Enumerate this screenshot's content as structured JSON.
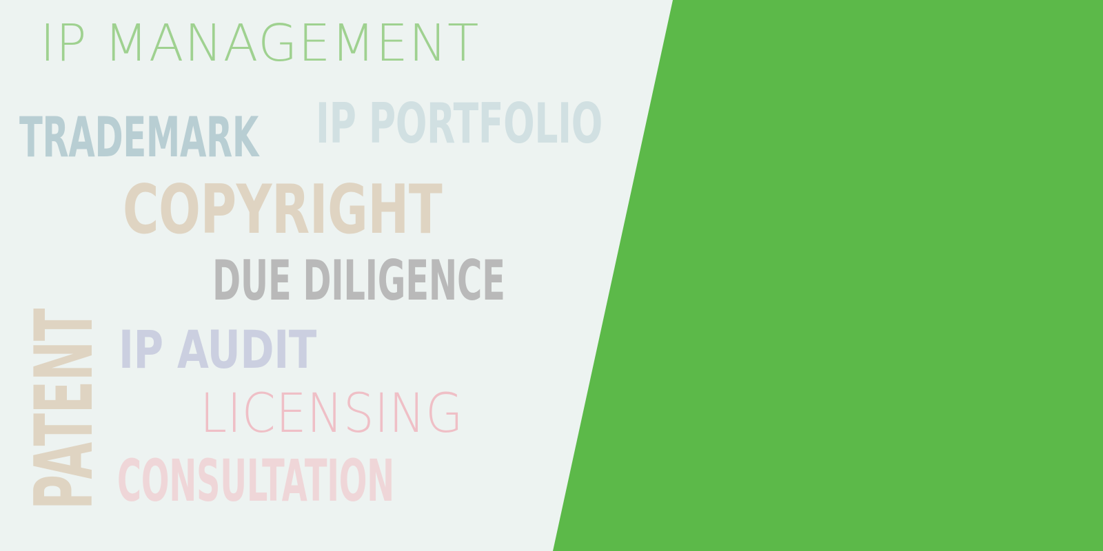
{
  "words": {
    "ip_management": "IP MANAGEMENT",
    "trademark": "TRADEMARK",
    "ip_portfolio": "IP PORTFOLIO",
    "copyright": "COPYRIGHT",
    "due_diligence": "DUE DILIGENCE",
    "ip_audit": "IP AUDIT",
    "licensing": "LICENSING",
    "consultation": "CONSULTATION",
    "patent": "PATENT"
  },
  "colors": {
    "background": "#edf3f1",
    "green_panel": "#5cb949",
    "ip_management": "#9fd190",
    "trademark": "#b8ced3",
    "ip_portfolio": "#d1e0e2",
    "copyright": "#dfd4c2",
    "patent": "#dfd4c2",
    "due_diligence": "#b9b9b9",
    "ip_audit": "#cbcfe0",
    "licensing": "#efbfc6",
    "consultation": "#efd6d8"
  }
}
